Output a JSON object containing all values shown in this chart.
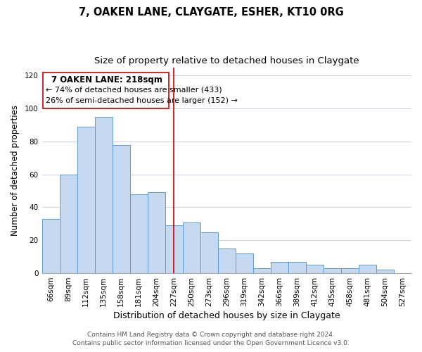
{
  "title": "7, OAKEN LANE, CLAYGATE, ESHER, KT10 0RG",
  "subtitle": "Size of property relative to detached houses in Claygate",
  "xlabel": "Distribution of detached houses by size in Claygate",
  "ylabel": "Number of detached properties",
  "bar_labels": [
    "66sqm",
    "89sqm",
    "112sqm",
    "135sqm",
    "158sqm",
    "181sqm",
    "204sqm",
    "227sqm",
    "250sqm",
    "273sqm",
    "296sqm",
    "319sqm",
    "342sqm",
    "366sqm",
    "389sqm",
    "412sqm",
    "435sqm",
    "458sqm",
    "481sqm",
    "504sqm",
    "527sqm"
  ],
  "bar_values": [
    33,
    60,
    89,
    95,
    78,
    48,
    49,
    29,
    31,
    25,
    15,
    12,
    3,
    7,
    7,
    5,
    3,
    3,
    5,
    2,
    0
  ],
  "bar_color": "#c6d9f0",
  "bar_edge_color": "#5b9bd5",
  "vline_x_index": 7,
  "vline_color": "#cc0000",
  "ylim": [
    0,
    125
  ],
  "yticks": [
    0,
    20,
    40,
    60,
    80,
    100,
    120
  ],
  "annotation_title": "7 OAKEN LANE: 218sqm",
  "annotation_line1": "← 74% of detached houses are smaller (433)",
  "annotation_line2": "26% of semi-detached houses are larger (152) →",
  "annotation_box_color": "#ffffff",
  "annotation_box_edge": "#cc0000",
  "footer1": "Contains HM Land Registry data © Crown copyright and database right 2024.",
  "footer2": "Contains public sector information licensed under the Open Government Licence v3.0.",
  "background_color": "#ffffff",
  "grid_color": "#d0d8e8",
  "title_fontsize": 10.5,
  "subtitle_fontsize": 9.5,
  "xlabel_fontsize": 9,
  "ylabel_fontsize": 8.5,
  "tick_fontsize": 7.5,
  "footer_fontsize": 6.5,
  "ann_title_fontsize": 8.5,
  "ann_text_fontsize": 8
}
